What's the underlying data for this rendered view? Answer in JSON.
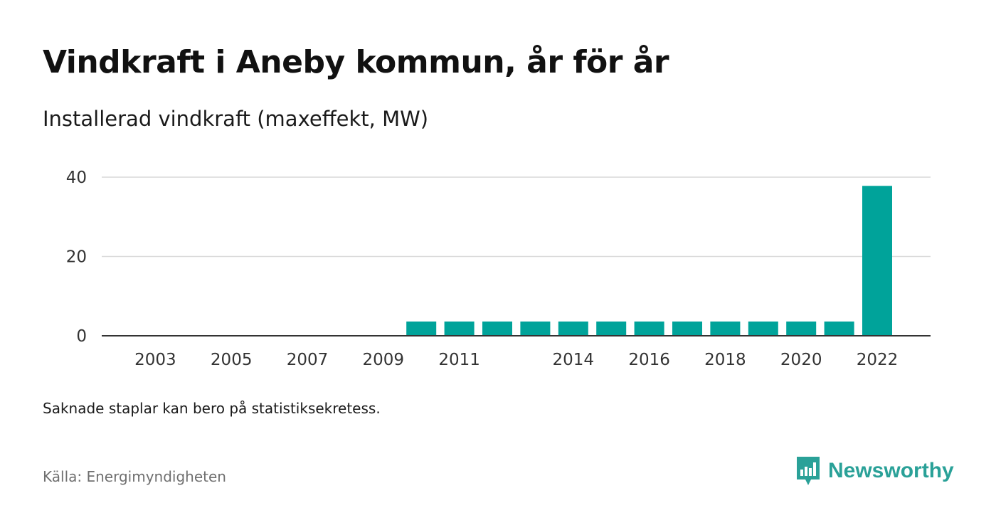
{
  "title": "Vindkraft i Aneby kommun, år för år",
  "subtitle": "Installerad vindkraft (maxeffekt, MW)",
  "note": "Saknade staplar kan bero på statistiksekretess.",
  "source": "Källa: Energimyndigheten",
  "brand": {
    "name": "Newsworthy",
    "icon": "newsworthy-logo-icon",
    "color": "#2aa198"
  },
  "chart_data": {
    "type": "bar",
    "categories": [
      "2002",
      "2003",
      "2004",
      "2005",
      "2006",
      "2007",
      "2008",
      "2009",
      "2010",
      "2011",
      "2012",
      "2013",
      "2014",
      "2015",
      "2016",
      "2017",
      "2018",
      "2019",
      "2020",
      "2021",
      "2022"
    ],
    "values": [
      0,
      0,
      0,
      0,
      0,
      0,
      0,
      0,
      3.6,
      3.6,
      3.6,
      3.6,
      3.6,
      3.6,
      3.6,
      3.6,
      3.6,
      3.6,
      3.6,
      3.6,
      37.8
    ],
    "x_tick_labels": [
      "2003",
      "2005",
      "2007",
      "2009",
      "2011",
      "2014",
      "2016",
      "2018",
      "2020",
      "2022"
    ],
    "y_ticks": [
      0,
      20,
      40
    ],
    "ylim": [
      0,
      40
    ],
    "xlabel": "",
    "ylabel": "",
    "bar_color": "#00a39a",
    "grid": true
  }
}
